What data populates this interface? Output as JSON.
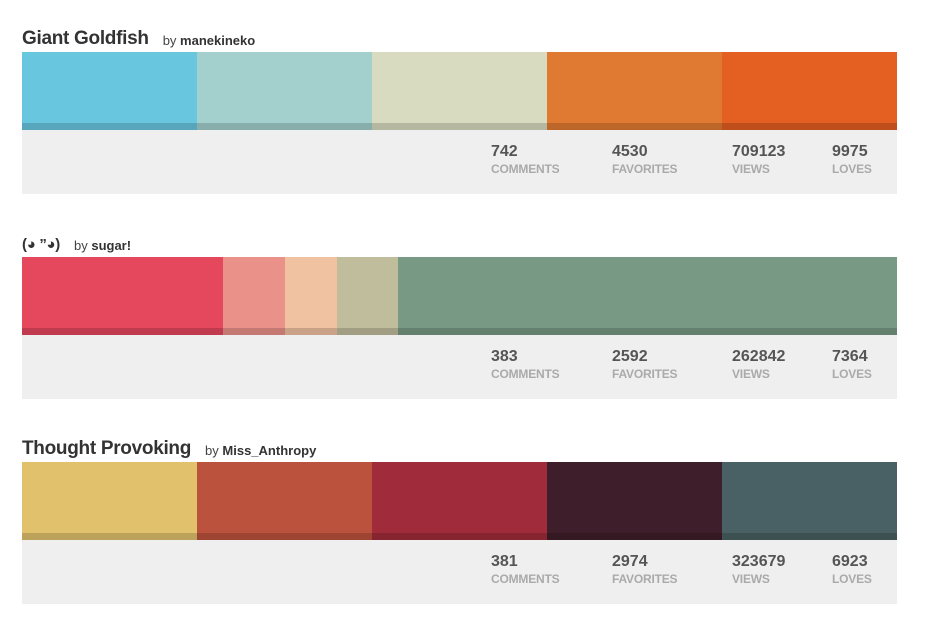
{
  "palettes": [
    {
      "title": "Giant Goldfish",
      "by_label": "by",
      "author": "manekineko",
      "colors": [
        {
          "hex": "#69c6df",
          "share": 20
        },
        {
          "hex": "#a3d0cd",
          "share": 20
        },
        {
          "hex": "#d8dbc0",
          "share": 20
        },
        {
          "hex": "#e07a33",
          "share": 20
        },
        {
          "hex": "#e35f22",
          "share": 20
        }
      ],
      "stats": {
        "comments": "742",
        "comments_label": "COMMENTS",
        "favorites": "4530",
        "favorites_label": "FAVORITES",
        "views": "709123",
        "views_label": "VIEWS",
        "loves": "9975",
        "loves_label": "LOVES"
      }
    },
    {
      "title": "(◕ ”◕)",
      "by_label": "by",
      "author": "sugar!",
      "colors": [
        {
          "hex": "#e5475c",
          "share": 23
        },
        {
          "hex": "#ea918a",
          "share": 7
        },
        {
          "hex": "#f1c2a1",
          "share": 6
        },
        {
          "hex": "#c0bd9c",
          "share": 7
        },
        {
          "hex": "#789a85",
          "share": 57
        }
      ],
      "stats": {
        "comments": "383",
        "comments_label": "COMMENTS",
        "favorites": "2592",
        "favorites_label": "FAVORITES",
        "views": "262842",
        "views_label": "VIEWS",
        "loves": "7364",
        "loves_label": "LOVES"
      }
    },
    {
      "title": "Thought Provoking",
      "by_label": "by",
      "author": "Miss_Anthropy",
      "colors": [
        {
          "hex": "#e1c16c",
          "share": 20
        },
        {
          "hex": "#bb523d",
          "share": 20
        },
        {
          "hex": "#a02b3a",
          "share": 20
        },
        {
          "hex": "#3e1e2a",
          "share": 20
        },
        {
          "hex": "#496164",
          "share": 20
        }
      ],
      "stats": {
        "comments": "381",
        "comments_label": "COMMENTS",
        "favorites": "2974",
        "favorites_label": "FAVORITES",
        "views": "323679",
        "views_label": "VIEWS",
        "loves": "6923",
        "loves_label": "LOVES"
      }
    }
  ]
}
